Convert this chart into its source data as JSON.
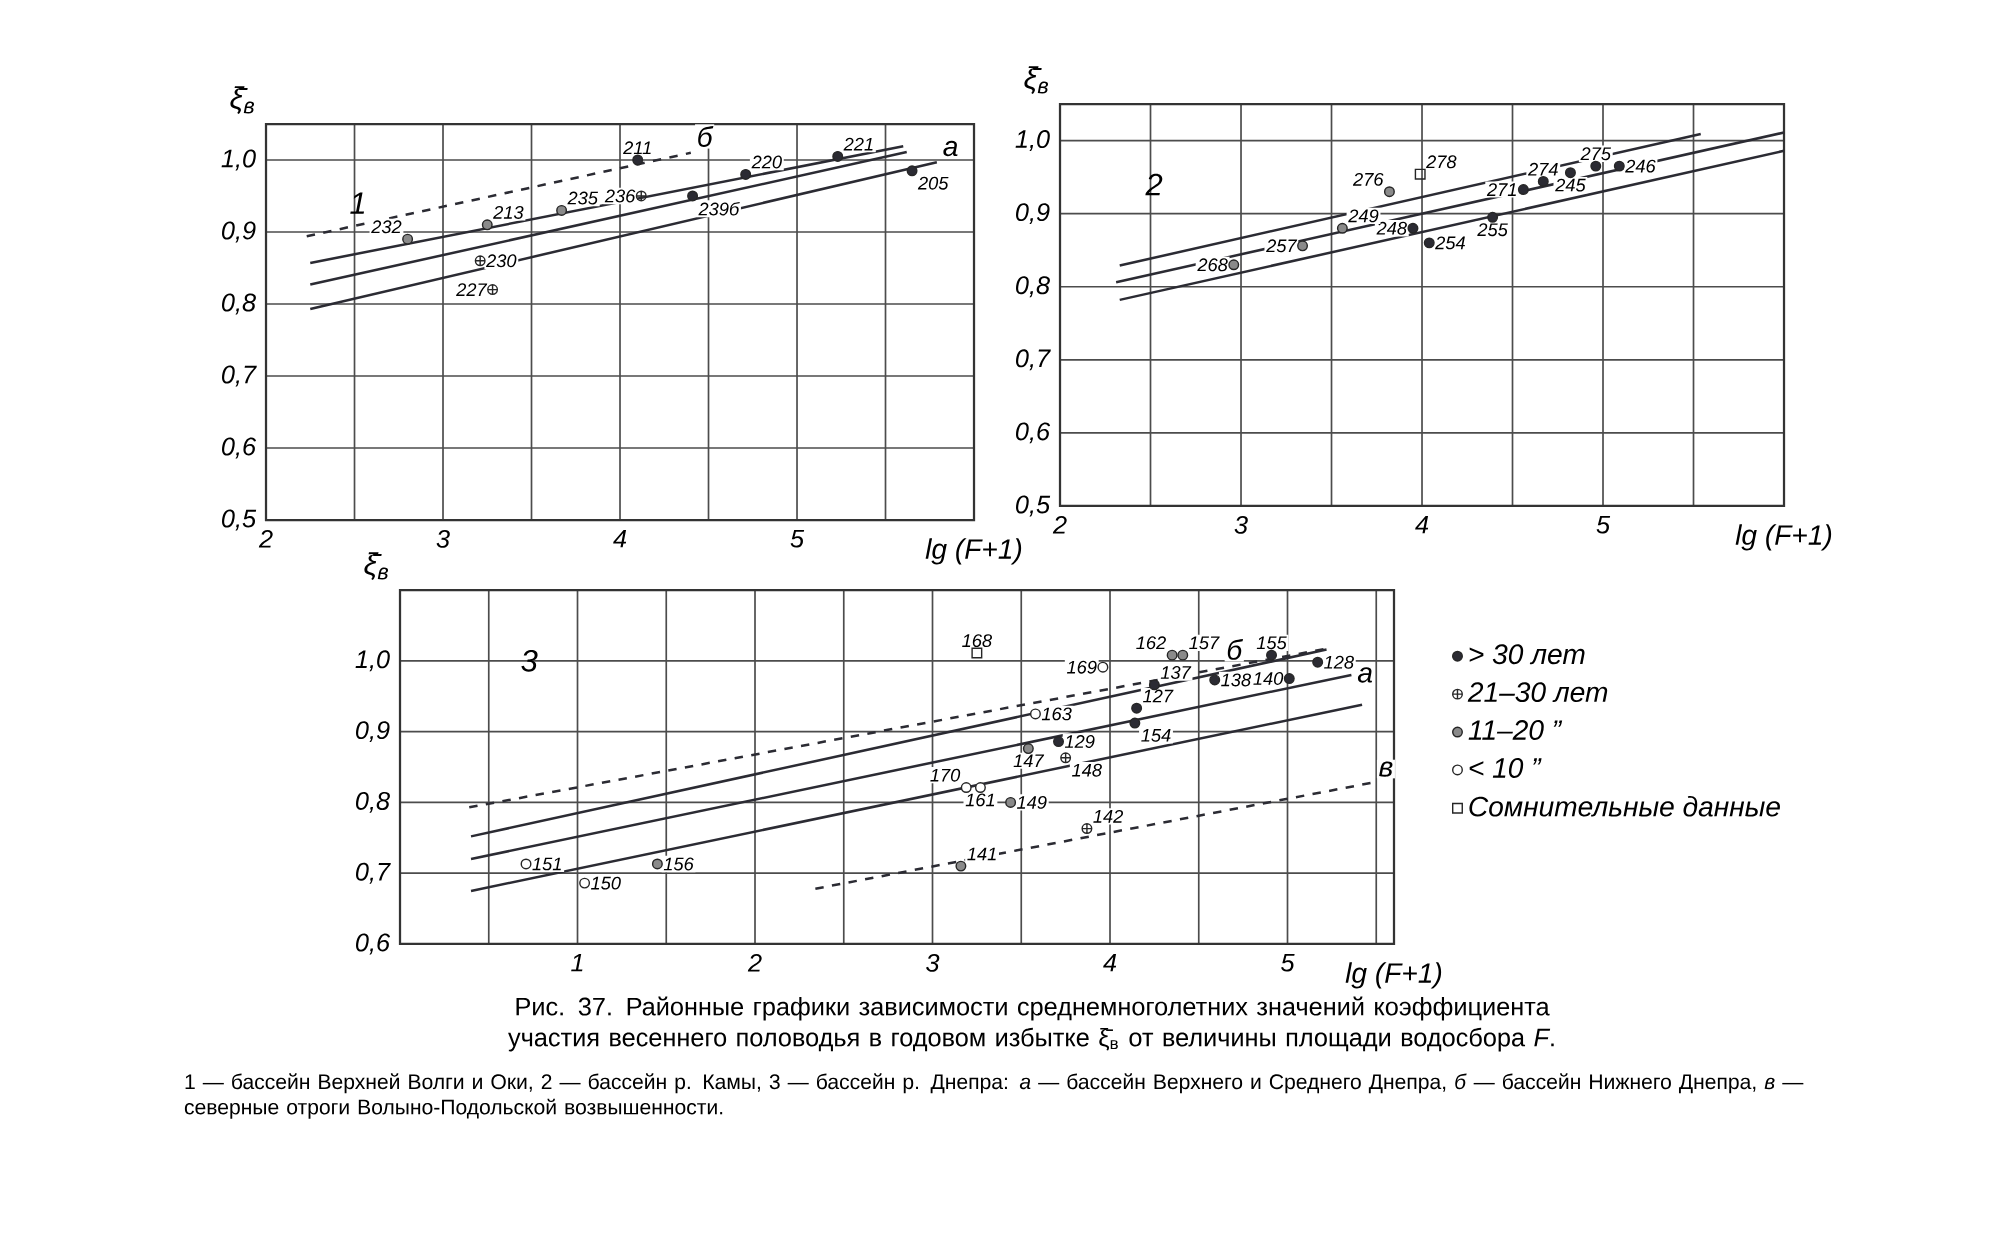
{
  "chart_data": [
    {
      "type": "scatter",
      "title": "1",
      "xlabel": "lg (F+1)",
      "ylabel": "ξ̄$_{в}$",
      "xlim": [
        2,
        6
      ],
      "ylim": [
        0.5,
        1.05
      ],
      "xticks": [
        2,
        {
          "value": 2.5,
          "label": null
        },
        3,
        {
          "value": 3.5,
          "label": null
        },
        4,
        {
          "value": 4.5,
          "label": null
        },
        5,
        {
          "value": 5.5,
          "label": null
        },
        {
          "value": 6,
          "label": null
        }
      ],
      "yticks": [
        {
          "value": 0.5,
          "label": "0,5"
        },
        {
          "value": 0.6,
          "label": "0,6"
        },
        {
          "value": 0.7,
          "label": "0,7"
        },
        {
          "value": 0.8,
          "label": "0,8"
        },
        {
          "value": 0.9,
          "label": "0,9"
        },
        {
          "value": 1.0,
          "label": "1,0"
        }
      ],
      "grid": true,
      "series": [
        {
          "marker": "circle",
          "color": "#2b2b33",
          "x": [
            4.1,
            4.41,
            4.71,
            5.23,
            5.65
          ],
          "values": [
            1.0,
            0.95,
            0.98,
            1.005,
            0.985
          ]
        },
        {
          "marker": "cross",
          "color": "#2b2b33",
          "x": [
            4.12,
            3.21,
            3.28
          ],
          "values": [
            0.95,
            0.86,
            0.82
          ]
        },
        {
          "marker": "circle",
          "color": "#8a8a8a",
          "x": [
            2.8,
            3.25,
            3.67
          ],
          "values": [
            0.89,
            0.91,
            0.93
          ]
        },
        {
          "type": "line",
          "line_style": "dashed",
          "color": "#2b2b33",
          "x": [
            2.23,
            4.4
          ],
          "values": [
            0.894,
            1.01
          ]
        },
        {
          "type": "line",
          "line_style": "solid",
          "color": "#2b2b33",
          "x": [
            2.25,
            5.6
          ],
          "values": [
            0.857,
            1.019
          ]
        },
        {
          "type": "line",
          "line_style": "solid",
          "color": "#2b2b33",
          "x": [
            2.25,
            5.62
          ],
          "values": [
            0.827,
            1.011
          ]
        },
        {
          "type": "line",
          "line_style": "solid",
          "color": "#2b2b33",
          "x": [
            2.25,
            5.79
          ],
          "values": [
            0.793,
            0.997
          ]
        }
      ],
      "annotations": [
        {
          "text": "211",
          "x": 4.1,
          "y": 1.0
        },
        {
          "text": "239б",
          "x": 4.41,
          "y": 0.95
        },
        {
          "text": "220",
          "x": 4.71,
          "y": 0.98
        },
        {
          "text": "221",
          "x": 5.23,
          "y": 1.005
        },
        {
          "text": "205",
          "x": 5.65,
          "y": 0.985
        },
        {
          "text": "236",
          "x": 4.12,
          "y": 0.95
        },
        {
          "text": "230",
          "x": 3.21,
          "y": 0.86
        },
        {
          "text": "227",
          "x": 3.28,
          "y": 0.82
        },
        {
          "text": "232",
          "x": 2.8,
          "y": 0.89
        },
        {
          "text": "213",
          "x": 3.25,
          "y": 0.91
        },
        {
          "text": "235",
          "x": 3.67,
          "y": 0.93
        },
        {
          "text": "б",
          "x": 4.4,
          "y": 1.01
        },
        {
          "text": "а",
          "x": 5.79,
          "y": 0.997
        }
      ]
    },
    {
      "type": "scatter",
      "title": "2",
      "xlabel": "lg (F+1)",
      "ylabel": "ξ̄$_{в}$",
      "xlim": [
        2,
        6
      ],
      "ylim": [
        0.5,
        1.05
      ],
      "xticks": [
        2,
        {
          "value": 2.5,
          "label": null
        },
        3,
        {
          "value": 3.5,
          "label": null
        },
        4,
        {
          "value": 4.5,
          "label": null
        },
        5,
        {
          "value": 5.5,
          "label": null
        },
        {
          "value": 6,
          "label": null
        }
      ],
      "yticks": [
        {
          "value": 0.5,
          "label": "0,5"
        },
        {
          "value": 0.6,
          "label": "0,6"
        },
        {
          "value": 0.7,
          "label": "0,7"
        },
        {
          "value": 0.8,
          "label": "0,8"
        },
        {
          "value": 0.9,
          "label": "0,9"
        },
        {
          "value": 1.0,
          "label": "1,0"
        }
      ],
      "grid": true,
      "series": [
        {
          "marker": "circle",
          "color": "#2b2b33",
          "x": [
            3.95,
            4.04,
            4.39,
            4.56,
            4.67,
            4.82,
            4.96,
            5.09
          ],
          "values": [
            0.88,
            0.86,
            0.895,
            0.933,
            0.944,
            0.956,
            0.965,
            0.965
          ]
        },
        {
          "marker": "circle",
          "color": "#8a8a8a",
          "x": [
            2.96,
            3.34,
            3.56,
            3.82
          ],
          "values": [
            0.83,
            0.856,
            0.88,
            0.93
          ]
        },
        {
          "marker": "square",
          "color": "#2b2b33",
          "x": [
            3.99
          ],
          "values": [
            0.954
          ]
        },
        {
          "type": "line",
          "line_style": "solid",
          "color": "#2b2b33",
          "x": [
            2.33,
            5.54
          ],
          "values": [
            0.829,
            1.009
          ]
        },
        {
          "type": "line",
          "line_style": "solid",
          "color": "#2b2b33",
          "x": [
            2.31,
            6.0
          ],
          "values": [
            0.806,
            1.011
          ]
        },
        {
          "type": "line",
          "line_style": "solid",
          "color": "#2b2b33",
          "x": [
            2.33,
            6.0
          ],
          "values": [
            0.782,
            0.986
          ]
        }
      ],
      "annotations": [
        {
          "text": "248",
          "x": 3.95,
          "y": 0.88
        },
        {
          "text": "254",
          "x": 4.04,
          "y": 0.86
        },
        {
          "text": "255",
          "x": 4.39,
          "y": 0.895
        },
        {
          "text": "271",
          "x": 4.56,
          "y": 0.933
        },
        {
          "text": "274",
          "x": 4.67,
          "y": 0.944
        },
        {
          "text": "245",
          "x": 4.82,
          "y": 0.956
        },
        {
          "text": "275",
          "x": 4.96,
          "y": 0.965
        },
        {
          "text": "246",
          "x": 5.09,
          "y": 0.965
        },
        {
          "text": "268",
          "x": 2.96,
          "y": 0.83
        },
        {
          "text": "257",
          "x": 3.34,
          "y": 0.856
        },
        {
          "text": "249",
          "x": 3.56,
          "y": 0.88
        },
        {
          "text": "276",
          "x": 3.82,
          "y": 0.93
        },
        {
          "text": "278",
          "x": 3.99,
          "y": 0.954
        }
      ]
    },
    {
      "type": "scatter",
      "title": "3",
      "xlabel": "lg (F+1)",
      "ylabel": "ξ̄$_{в}$",
      "xlim": [
        0,
        5.6
      ],
      "ylim": [
        0.6,
        1.1
      ],
      "xticks": [
        {
          "value": 0,
          "label": null
        },
        {
          "value": 0.5,
          "label": null
        },
        1,
        {
          "value": 1.5,
          "label": null
        },
        2,
        {
          "value": 2.5,
          "label": null
        },
        3,
        {
          "value": 3.5,
          "label": null
        },
        4,
        {
          "value": 4.5,
          "label": null
        },
        5,
        {
          "value": 5.5,
          "label": null
        }
      ],
      "yticks": [
        {
          "value": 0.6,
          "label": "0,6"
        },
        {
          "value": 0.7,
          "label": "0,7"
        },
        {
          "value": 0.8,
          "label": "0,8"
        },
        {
          "value": 0.9,
          "label": "0,9"
        },
        {
          "value": 1.0,
          "label": "1,0"
        }
      ],
      "grid": true,
      "legend": "right",
      "series": [
        {
          "name": "> 30 лет",
          "marker": "circle",
          "color": "#2b2b33",
          "x": [
            3.71,
            4.15,
            4.14,
            4.25,
            4.59,
            4.91,
            5.01,
            5.17
          ],
          "values": [
            0.886,
            0.933,
            0.912,
            0.966,
            0.973,
            1.008,
            0.975,
            0.998
          ]
        },
        {
          "name": "21–30 лет",
          "marker": "cross",
          "color": "#2b2b33",
          "x": [
            3.75,
            3.87
          ],
          "values": [
            0.863,
            0.763
          ]
        },
        {
          "name": "11–20 ”",
          "marker": "circle",
          "color": "#8a8a8a",
          "x": [
            1.45,
            3.16,
            3.44,
            3.54,
            4.35,
            4.41
          ],
          "values": [
            0.713,
            0.71,
            0.8,
            0.876,
            1.008,
            1.008
          ]
        },
        {
          "name": "< 10 ”",
          "marker": "circle",
          "color": "#ffffff",
          "x": [
            0.71,
            1.04,
            3.19,
            3.27,
            3.58,
            3.96
          ],
          "values": [
            0.713,
            0.686,
            0.821,
            0.821,
            0.925,
            0.991
          ]
        },
        {
          "name": "Сомнительные данные",
          "marker": "square",
          "color": "#2b2b33",
          "x": [
            3.25
          ],
          "values": [
            1.011
          ]
        },
        {
          "type": "line",
          "line_style": "dashed",
          "color": "#2b2b33",
          "x": [
            0.39,
            5.24
          ],
          "values": [
            0.793,
            1.018
          ]
        },
        {
          "type": "line",
          "line_style": "solid",
          "color": "#2b2b33",
          "x": [
            0.4,
            5.22
          ],
          "values": [
            0.752,
            1.016
          ]
        },
        {
          "type": "line",
          "line_style": "solid",
          "color": "#2b2b33",
          "x": [
            0.4,
            5.36
          ],
          "values": [
            0.72,
            0.98
          ]
        },
        {
          "type": "line",
          "line_style": "solid",
          "color": "#2b2b33",
          "x": [
            0.4,
            5.42
          ],
          "values": [
            0.675,
            0.938
          ]
        },
        {
          "type": "line",
          "line_style": "dashed",
          "color": "#2b2b33",
          "x": [
            2.34,
            5.48
          ],
          "values": [
            0.678,
            0.828
          ]
        }
      ],
      "annotations": [
        {
          "text": "129",
          "x": 3.71,
          "y": 0.886
        },
        {
          "text": "127",
          "x": 4.15,
          "y": 0.933
        },
        {
          "text": "154",
          "x": 4.14,
          "y": 0.912
        },
        {
          "text": "137",
          "x": 4.25,
          "y": 0.966
        },
        {
          "text": "138",
          "x": 4.59,
          "y": 0.973
        },
        {
          "text": "155",
          "x": 4.91,
          "y": 1.008
        },
        {
          "text": "140",
          "x": 5.01,
          "y": 0.975
        },
        {
          "text": "128",
          "x": 5.17,
          "y": 0.998
        },
        {
          "text": "148",
          "x": 3.75,
          "y": 0.863
        },
        {
          "text": "142",
          "x": 3.87,
          "y": 0.763
        },
        {
          "text": "156",
          "x": 1.45,
          "y": 0.713
        },
        {
          "text": "141",
          "x": 3.16,
          "y": 0.71
        },
        {
          "text": "149",
          "x": 3.44,
          "y": 0.8
        },
        {
          "text": "147",
          "x": 3.54,
          "y": 0.876
        },
        {
          "text": "162",
          "x": 4.35,
          "y": 1.008
        },
        {
          "text": "157",
          "x": 4.41,
          "y": 1.008
        },
        {
          "text": "151",
          "x": 0.71,
          "y": 0.713
        },
        {
          "text": "150",
          "x": 1.04,
          "y": 0.686
        },
        {
          "text": "170",
          "x": 3.19,
          "y": 0.821
        },
        {
          "text": "161",
          "x": 3.27,
          "y": 0.821
        },
        {
          "text": "163",
          "x": 3.58,
          "y": 0.925
        },
        {
          "text": "169",
          "x": 3.96,
          "y": 0.991
        },
        {
          "text": "168",
          "x": 3.25,
          "y": 1.011
        },
        {
          "text": "б",
          "x": 4.7,
          "y": 0.993
        },
        {
          "text": "а",
          "x": 5.36,
          "y": 0.98
        },
        {
          "text": "в",
          "x": 5.48,
          "y": 0.828
        },
        "Рис. 37. Районные графики зависимости среднемноголетних значений коэффициента участия весеннего половодья в годовом избытке ξ̄$_{в}$ от величины площади водосбора *F*.",
        "1 — бассейн Верхней Волги и Оки, 2 — бассейн р. Камы, 3 — бассейн р. Днепра: *а* — бассейн Верхнего и Среднего Днепра, *б* — бассейн Нижнего Днепра, *в* — северные отроги Волыно-Подольской возвышенности."
      ]
    }
  ]
}
